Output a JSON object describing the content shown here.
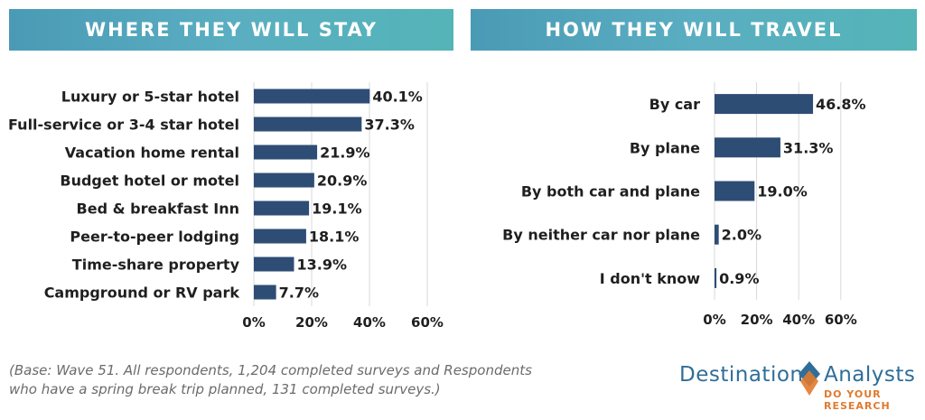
{
  "banners": {
    "left": "WHERE THEY WILL STAY",
    "right": "HOW THEY WILL TRAVEL"
  },
  "chart_data": [
    {
      "type": "bar",
      "orientation": "horizontal",
      "title": "WHERE THEY WILL STAY",
      "categories": [
        "Luxury or 5-star hotel",
        "Full-service or 3-4 star hotel",
        "Vacation home rental",
        "Budget hotel or motel",
        "Bed & breakfast Inn",
        "Peer-to-peer lodging",
        "Time-share property",
        "Campground or RV park"
      ],
      "values": [
        40.1,
        37.3,
        21.9,
        20.9,
        19.1,
        18.1,
        13.9,
        7.7
      ],
      "value_labels": [
        "40.1%",
        "37.3%",
        "21.9%",
        "20.9%",
        "19.1%",
        "18.1%",
        "13.9%",
        "7.7%"
      ],
      "xlim": [
        0,
        60
      ],
      "xticks": [
        "0%",
        "20%",
        "40%",
        "60%"
      ],
      "grid": "vertical",
      "bar_color": "#2e4d75"
    },
    {
      "type": "bar",
      "orientation": "horizontal",
      "title": "HOW THEY WILL TRAVEL",
      "categories": [
        "By car",
        "By plane",
        "By both car and plane",
        "By neither car nor plane",
        "I don't know"
      ],
      "values": [
        46.8,
        31.3,
        19.0,
        2.0,
        0.9
      ],
      "value_labels": [
        "46.8%",
        "31.3%",
        "19.0%",
        "2.0%",
        "0.9%"
      ],
      "xlim": [
        0,
        60
      ],
      "xticks": [
        "0%",
        "20%",
        "40%",
        "60%"
      ],
      "grid": "vertical",
      "bar_color": "#2e4d75"
    }
  ],
  "footnote": {
    "line1": "(Base: Wave 51. All respondents, 1,204 completed surveys and Respondents",
    "line2": "who have a spring break trip planned, 131 completed surveys.)"
  },
  "logo": {
    "word1": "Destination",
    "word2": "Analysts",
    "tagline": "DO YOUR RESEARCH",
    "colors": {
      "primary": "#2f6e98",
      "accent": "#e07a2e"
    }
  }
}
